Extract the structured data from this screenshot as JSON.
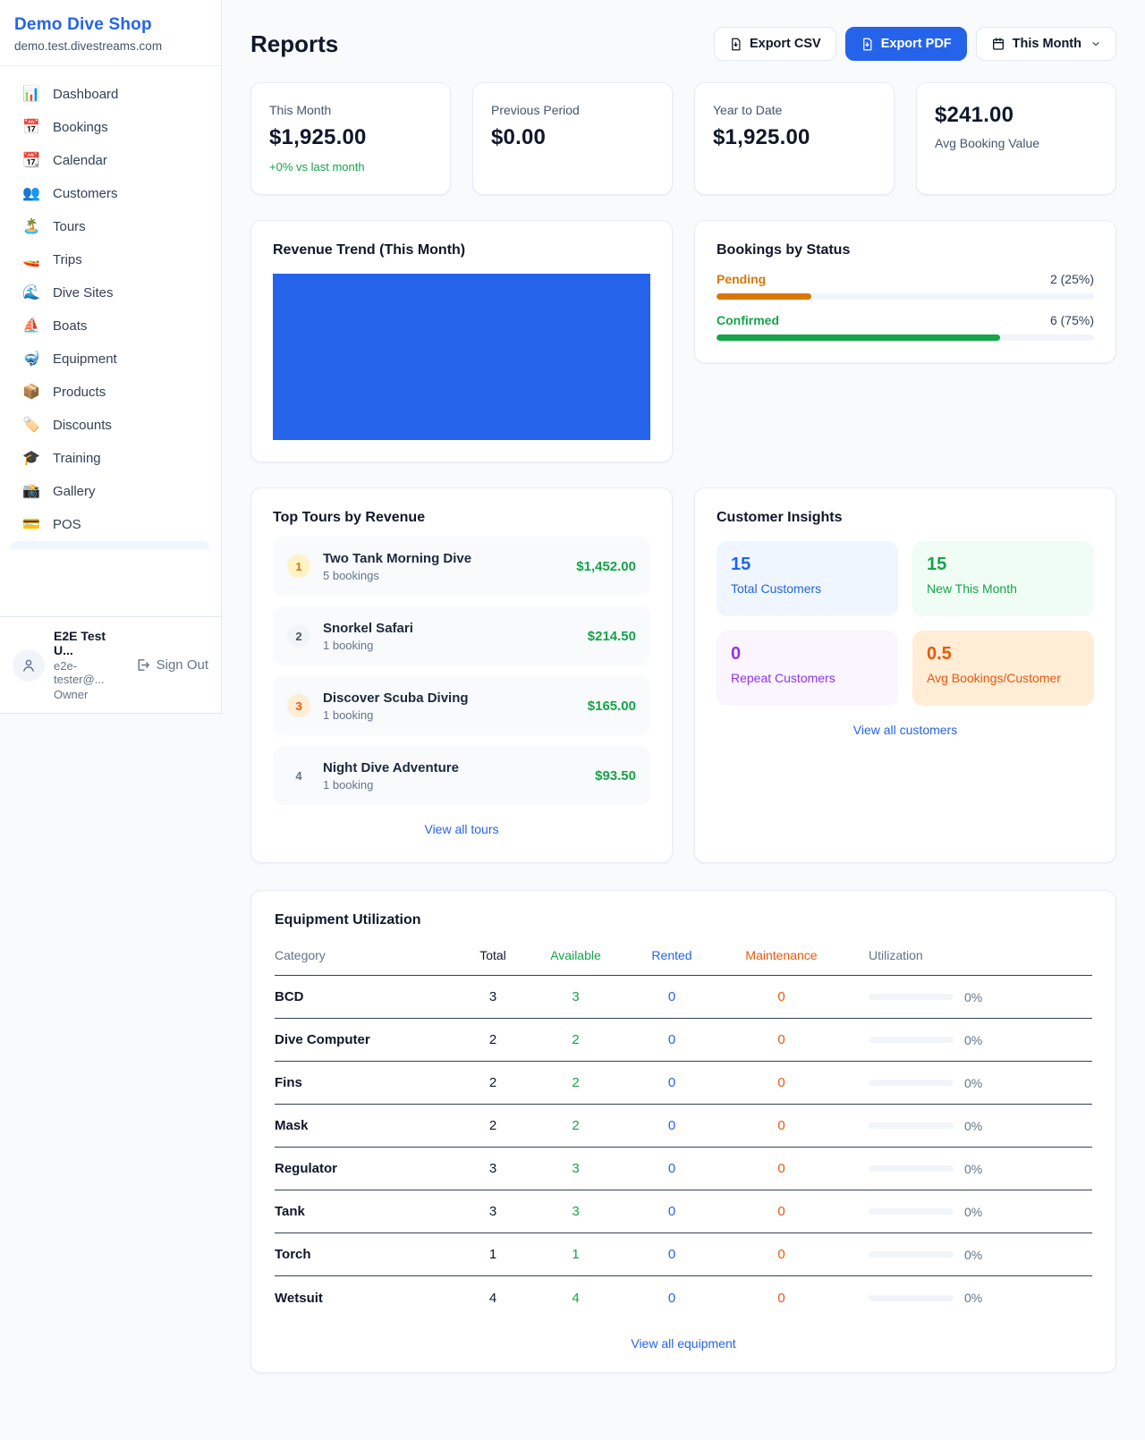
{
  "colors": {
    "accent_blue": "#2563eb",
    "green": "#16a34a",
    "pending_orange": "#d97706",
    "maintenance_orange": "#ea580c",
    "purple": "#9333ea",
    "chart_bar_blue": "#2563eb"
  },
  "sidebar": {
    "brand": {
      "name": "Demo Dive Shop",
      "domain": "demo.test.divestreams.com"
    },
    "nav": [
      {
        "icon": "📊",
        "label": "Dashboard"
      },
      {
        "icon": "📅",
        "label": "Bookings"
      },
      {
        "icon": "📆",
        "label": "Calendar"
      },
      {
        "icon": "👥",
        "label": "Customers"
      },
      {
        "icon": "🏝️",
        "label": "Tours"
      },
      {
        "icon": "🚤",
        "label": "Trips"
      },
      {
        "icon": "🌊",
        "label": "Dive Sites"
      },
      {
        "icon": "⛵",
        "label": "Boats"
      },
      {
        "icon": "🤿",
        "label": "Equipment"
      },
      {
        "icon": "📦",
        "label": "Products"
      },
      {
        "icon": "🏷️",
        "label": "Discounts"
      },
      {
        "icon": "🎓",
        "label": "Training"
      },
      {
        "icon": "📸",
        "label": "Gallery"
      },
      {
        "icon": "💳",
        "label": "POS"
      }
    ],
    "user": {
      "name": "E2E Test U...",
      "email": "e2e-tester@...",
      "role": "Owner",
      "sign_out": "Sign Out"
    }
  },
  "header": {
    "title": "Reports",
    "export_csv": "Export CSV",
    "export_pdf": "Export PDF",
    "period": "This Month"
  },
  "stats": [
    {
      "label": "This Month",
      "value": "$1,925.00",
      "delta": "+0% vs last month"
    },
    {
      "label": "Previous Period",
      "value": "$0.00"
    },
    {
      "label": "Year to Date",
      "value": "$1,925.00"
    },
    {
      "value": "$241.00",
      "label": "Avg Booking Value"
    }
  ],
  "revenue_trend": {
    "title": "Revenue Trend (This Month)",
    "bar_color": "#2563eb",
    "note": "single full-width bar filling the chart area"
  },
  "bookings_by_status": {
    "title": "Bookings by Status",
    "rows": [
      {
        "label": "Pending",
        "count_text": "2 (25%)",
        "pct": 25,
        "color": "#d97706"
      },
      {
        "label": "Confirmed",
        "count_text": "6 (75%)",
        "pct": 75,
        "color": "#16a34a"
      }
    ]
  },
  "top_tours": {
    "title": "Top Tours by Revenue",
    "link": "View all tours",
    "rows": [
      {
        "rank": "1",
        "name": "Two Tank Morning Dive",
        "bookings": "5 bookings",
        "revenue": "$1,452.00",
        "badge_bg": "#fef3c7",
        "badge_color": "#d97706"
      },
      {
        "rank": "2",
        "name": "Snorkel Safari",
        "bookings": "1 booking",
        "revenue": "$214.50",
        "badge_bg": "#f1f5f9",
        "badge_color": "#475569"
      },
      {
        "rank": "3",
        "name": "Discover Scuba Diving",
        "bookings": "1 booking",
        "revenue": "$165.00",
        "badge_bg": "#ffedd5",
        "badge_color": "#ea580c"
      },
      {
        "rank": "4",
        "name": "Night Dive Adventure",
        "bookings": "1 booking",
        "revenue": "$93.50",
        "badge_bg": "transparent",
        "badge_color": "#64748b"
      }
    ]
  },
  "customer_insights": {
    "title": "Customer Insights",
    "link": "View all customers",
    "tiles": [
      {
        "value": "15",
        "label": "Total Customers",
        "color": "#2563eb",
        "bg": "#eff6ff"
      },
      {
        "value": "15",
        "label": "New This Month",
        "color": "#16a34a",
        "bg": "#f0fdf4"
      },
      {
        "value": "0",
        "label": "Repeat Customers",
        "color": "#9333ea",
        "bg": "#faf5ff"
      },
      {
        "value": "0.5",
        "label": "Avg Bookings/Customer",
        "color": "#ea580c",
        "bg": "#ffedd5"
      }
    ]
  },
  "equipment": {
    "title": "Equipment Utilization",
    "link": "View all equipment",
    "columns": {
      "category": "Category",
      "total": "Total",
      "available": "Available",
      "rented": "Rented",
      "maintenance": "Maintenance",
      "utilization": "Utilization"
    },
    "rows": [
      {
        "category": "BCD",
        "total": "3",
        "available": "3",
        "rented": "0",
        "maintenance": "0",
        "utilization": "0%"
      },
      {
        "category": "Dive Computer",
        "total": "2",
        "available": "2",
        "rented": "0",
        "maintenance": "0",
        "utilization": "0%"
      },
      {
        "category": "Fins",
        "total": "2",
        "available": "2",
        "rented": "0",
        "maintenance": "0",
        "utilization": "0%"
      },
      {
        "category": "Mask",
        "total": "2",
        "available": "2",
        "rented": "0",
        "maintenance": "0",
        "utilization": "0%"
      },
      {
        "category": "Regulator",
        "total": "3",
        "available": "3",
        "rented": "0",
        "maintenance": "0",
        "utilization": "0%"
      },
      {
        "category": "Tank",
        "total": "3",
        "available": "3",
        "rented": "0",
        "maintenance": "0",
        "utilization": "0%"
      },
      {
        "category": "Torch",
        "total": "1",
        "available": "1",
        "rented": "0",
        "maintenance": "0",
        "utilization": "0%"
      },
      {
        "category": "Wetsuit",
        "total": "4",
        "available": "4",
        "rented": "0",
        "maintenance": "0",
        "utilization": "0%"
      }
    ]
  }
}
